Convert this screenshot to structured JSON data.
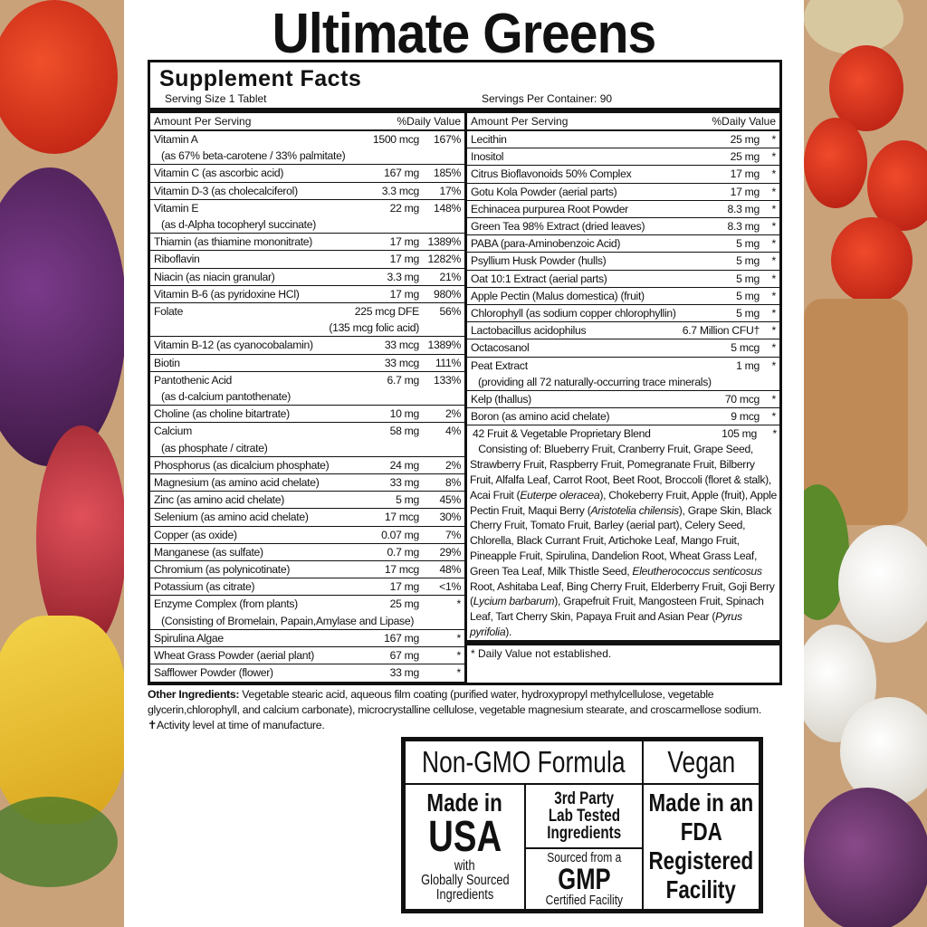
{
  "title": "Ultimate Greens",
  "facts": {
    "heading": "Supplement Facts",
    "serving_size": "Serving Size 1 Tablet",
    "servings_per_container": "Servings Per Container: 90",
    "col_amount": "Amount Per Serving",
    "col_dv": "%Daily Value",
    "left": [
      {
        "name": "Vitamin A",
        "amount": "1500 mcg",
        "dv": "167%",
        "sub": "(as 67% beta-carotene / 33% palmitate)"
      },
      {
        "name": "Vitamin C (as ascorbic acid)",
        "amount": "167 mg",
        "dv": "185%"
      },
      {
        "name": "Vitamin D-3 (as cholecalciferol)",
        "amount": "3.3 mcg",
        "dv": "17%"
      },
      {
        "name": "Vitamin E",
        "amount": "22 mg",
        "dv": "148%",
        "sub": "(as d-Alpha tocopheryl succinate)"
      },
      {
        "name": "Thiamin (as thiamine mononitrate)",
        "amount": "17 mg",
        "dv": "1389%"
      },
      {
        "name": "Riboflavin",
        "amount": "17 mg",
        "dv": "1282%"
      },
      {
        "name": "Niacin (as niacin granular)",
        "amount": "3.3 mg",
        "dv": "21%"
      },
      {
        "name": "Vitamin B-6 (as pyridoxine HCl)",
        "amount": "17 mg",
        "dv": "980%"
      },
      {
        "name": "Folate",
        "amount": "225 mcg DFE",
        "dv": "56%",
        "subr": "(135 mcg folic acid)"
      },
      {
        "name": "Vitamin B-12 (as cyanocobalamin)",
        "amount": "33 mcg",
        "dv": "1389%"
      },
      {
        "name": "Biotin",
        "amount": "33 mcg",
        "dv": "111%"
      },
      {
        "name": "Pantothenic Acid",
        "amount": "6.7 mg",
        "dv": "133%",
        "sub": "(as d-calcium pantothenate)"
      },
      {
        "name": "Choline (as choline bitartrate)",
        "amount": "10 mg",
        "dv": "2%"
      },
      {
        "name": "Calcium",
        "amount": "58 mg",
        "dv": "4%",
        "sub": "(as phosphate / citrate)"
      },
      {
        "name": "Phosphorus (as dicalcium phosphate)",
        "amount": "24 mg",
        "dv": "2%"
      },
      {
        "name": "Magnesium (as amino acid chelate)",
        "amount": "33 mg",
        "dv": "8%"
      },
      {
        "name": "Zinc (as amino acid chelate)",
        "amount": "5 mg",
        "dv": "45%"
      },
      {
        "name": "Selenium (as amino acid chelate)",
        "amount": "17 mcg",
        "dv": "30%"
      },
      {
        "name": "Copper (as oxide)",
        "amount": "0.07 mg",
        "dv": "7%"
      },
      {
        "name": "Manganese (as sulfate)",
        "amount": "0.7 mg",
        "dv": "29%"
      },
      {
        "name": "Chromium (as polynicotinate)",
        "amount": "17 mcg",
        "dv": "48%"
      },
      {
        "name": "Potassium (as citrate)",
        "amount": "17 mg",
        "dv": "<1%"
      },
      {
        "name": "Enzyme Complex (from plants)",
        "amount": "25 mg",
        "dv": "*",
        "sub": "(Consisting of Bromelain, Papain,Amylase and Lipase)"
      },
      {
        "name": "Spirulina Algae",
        "amount": "167 mg",
        "dv": "*"
      },
      {
        "name": "Wheat Grass Powder (aerial plant)",
        "amount": "67 mg",
        "dv": "*"
      },
      {
        "name": "Safflower Powder (flower)",
        "amount": "33 mg",
        "dv": "*"
      }
    ],
    "right": [
      {
        "name": "Lecithin",
        "amount": "25 mg",
        "dv": "*"
      },
      {
        "name": "Inositol",
        "amount": "25 mg",
        "dv": "*"
      },
      {
        "name": "Citrus Bioflavonoids 50% Complex",
        "amount": "17 mg",
        "dv": "*"
      },
      {
        "name": "Gotu Kola Powder (aerial parts)",
        "amount": "17 mg",
        "dv": "*"
      },
      {
        "name": "Echinacea purpurea Root Powder",
        "amount": "8.3 mg",
        "dv": "*"
      },
      {
        "name": "Green Tea 98% Extract (dried leaves)",
        "amount": "8.3 mg",
        "dv": "*"
      },
      {
        "name": "PABA (para-Aminobenzoic Acid)",
        "amount": "5 mg",
        "dv": "*"
      },
      {
        "name": "Psyllium Husk Powder (hulls)",
        "amount": "5 mg",
        "dv": "*"
      },
      {
        "name": "Oat 10:1 Extract (aerial parts)",
        "amount": "5 mg",
        "dv": "*"
      },
      {
        "name": "Apple Pectin (Malus domestica) (fruit)",
        "amount": "5 mg",
        "dv": "*"
      },
      {
        "name": "Chlorophyll (as sodium copper chlorophyllin)",
        "amount": "5 mg",
        "dv": "*"
      },
      {
        "name": "Lactobacillus acidophilus",
        "amount": "6.7 Million CFU†",
        "dv": "*"
      },
      {
        "name": "Octacosanol",
        "amount": "5 mcg",
        "dv": "*"
      },
      {
        "name": "Peat Extract",
        "amount": "1 mg",
        "dv": "*",
        "sub": "(providing all 72 naturally-occurring trace minerals)"
      },
      {
        "name": "Kelp (thallus)",
        "amount": "70 mcg",
        "dv": "*"
      },
      {
        "name": "Boron (as amino acid chelate)",
        "amount": "9 mcg",
        "dv": "*"
      }
    ],
    "blend": {
      "name": "42 Fruit & Vegetable Proprietary Blend",
      "amount": "105 mg",
      "dv": "*",
      "segments": [
        {
          "t": "   Consisting of: Blueberry Fruit, Cranberry Fruit, Grape Seed, Strawberry Fruit, Raspberry Fruit, Pomegranate Fruit, Bilberry Fruit, Alfalfa Leaf, Carrot Root, Beet Root, Broccoli (floret & stalk), Acai Fruit ("
        },
        {
          "t": "Euterpe oleracea",
          "i": true
        },
        {
          "t": "), Chokeberry Fruit, Apple (fruit), Apple Pectin Fruit, Maqui Berry ("
        },
        {
          "t": "Aristotelia chilensis",
          "i": true
        },
        {
          "t": "), Grape Skin, Black Cherry Fruit, Tomato Fruit, Barley (aerial part), Celery Seed, Chlorella, Black Currant Fruit, Artichoke Leaf, Mango Fruit, Pineapple Fruit, Spirulina, Dandelion Root, Wheat Grass Leaf, Green Tea Leaf, Milk Thistle Seed, "
        },
        {
          "t": "Eleutherococcus senticosus",
          "i": true
        },
        {
          "t": " Root, Ashitaba Leaf, Bing Cherry Fruit, Elderberry Fruit, Goji Berry ("
        },
        {
          "t": "Lycium barbarum",
          "i": true
        },
        {
          "t": "), Grapefruit Fruit, Mangosteen Fruit, Spinach Leaf, Tart Cherry Skin, Papaya Fruit and Asian Pear ("
        },
        {
          "t": "Pyrus pyrifolia",
          "i": true
        },
        {
          "t": ")."
        }
      ]
    },
    "footnote": "* Daily Value not established."
  },
  "other": {
    "label": "Other Ingredients:",
    "text": " Vegetable stearic acid, aqueous film coating (purified water, hydroxypropyl methylcellulose, vegetable glycerin,chlorophyll, and calcium carbonate), microcrystalline cellulose, vegetable magnesium stearate, and croscarmellose sodium.",
    "activity": "✝Activity level at time of manufacture."
  },
  "badges": {
    "non_gmo": "Non-GMO Formula",
    "vegan": "Vegan",
    "made_in": "Made in",
    "usa": "USA",
    "with": "with",
    "globally": "Globally Sourced",
    "ingredients": "Ingredients",
    "third_party": "3rd Party",
    "lab_tested": "Lab Tested",
    "tested_ingredients": "Ingredients",
    "sourced": "Sourced from a",
    "gmp": "GMP",
    "certified": "Certified Facility",
    "fda1": "Made in an",
    "fda2": "FDA",
    "fda3": "Registered",
    "fda4": "Facility"
  }
}
